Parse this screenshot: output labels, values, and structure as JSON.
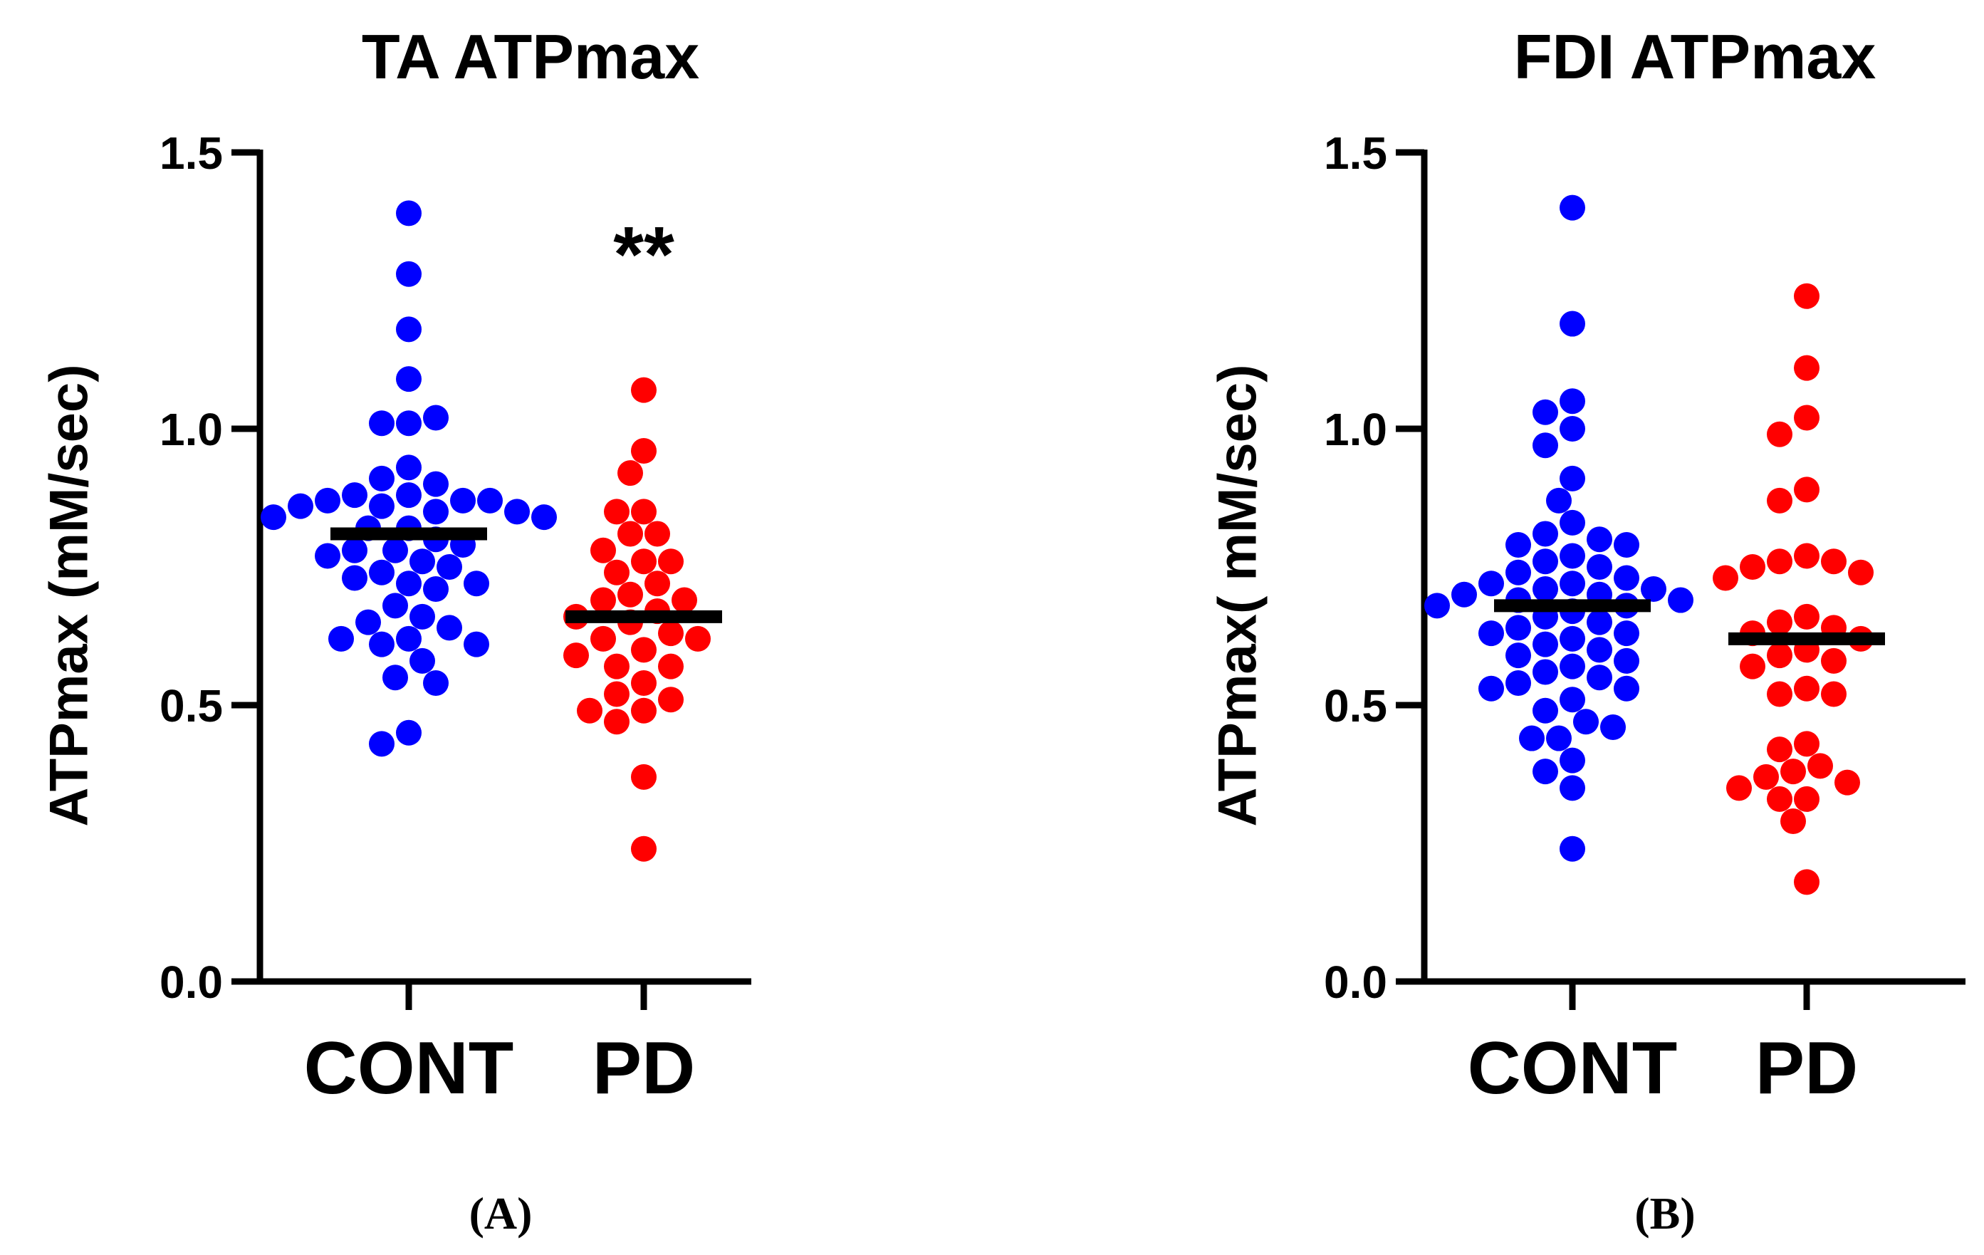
{
  "chart_data": [
    {
      "type": "scatter",
      "title": "TA ATPmax",
      "ylabel": "ATPmax (mM/sec)",
      "ylim": [
        0,
        1.5
      ],
      "yticks": [
        "0.0",
        "0.5",
        "1.0",
        "1.5"
      ],
      "categories": [
        "CONT",
        "PD"
      ],
      "panel_label": "(A)",
      "significance": "**",
      "colors": {
        "CONT": "#0000ff",
        "PD": "#ff0000",
        "mean": "#000000"
      },
      "series": [
        {
          "values": [
            1.39,
            1.28,
            1.18,
            1.09,
            1.01,
            1.01,
            1.02,
            0.93,
            0.91,
            0.9,
            0.88,
            0.88,
            0.87,
            0.87,
            0.87,
            0.86,
            0.86,
            0.85,
            0.85,
            0.84,
            0.84,
            0.82,
            0.82,
            0.8,
            0.79,
            0.78,
            0.78,
            0.77,
            0.76,
            0.75,
            0.74,
            0.73,
            0.72,
            0.72,
            0.71,
            0.68,
            0.66,
            0.65,
            0.64,
            0.62,
            0.62,
            0.61,
            0.61,
            0.58,
            0.55,
            0.54,
            0.45,
            0.43
          ],
          "mean": 0.81
        },
        {
          "values": [
            1.07,
            0.96,
            0.92,
            0.85,
            0.85,
            0.81,
            0.81,
            0.78,
            0.76,
            0.76,
            0.74,
            0.72,
            0.7,
            0.69,
            0.69,
            0.67,
            0.66,
            0.65,
            0.63,
            0.62,
            0.62,
            0.6,
            0.59,
            0.57,
            0.57,
            0.54,
            0.52,
            0.51,
            0.49,
            0.49,
            0.47,
            0.37,
            0.24
          ],
          "mean": 0.66
        }
      ]
    },
    {
      "type": "scatter",
      "title": "FDI ATPmax",
      "ylabel": "ATPmax( mM/sec)",
      "ylim": [
        0,
        1.5
      ],
      "yticks": [
        "0.0",
        "0.5",
        "1.0",
        "1.5"
      ],
      "categories": [
        "CONT",
        "PD"
      ],
      "panel_label": "(B)",
      "colors": {
        "CONT": "#0000ff",
        "PD": "#ff0000",
        "mean": "#000000"
      },
      "series": [
        {
          "values": [
            1.4,
            1.19,
            1.05,
            1.03,
            1.0,
            0.97,
            0.91,
            0.87,
            0.83,
            0.81,
            0.8,
            0.79,
            0.79,
            0.77,
            0.76,
            0.75,
            0.74,
            0.73,
            0.72,
            0.72,
            0.71,
            0.71,
            0.7,
            0.7,
            0.69,
            0.69,
            0.68,
            0.68,
            0.67,
            0.66,
            0.65,
            0.64,
            0.63,
            0.63,
            0.62,
            0.61,
            0.6,
            0.59,
            0.58,
            0.57,
            0.56,
            0.55,
            0.54,
            0.53,
            0.53,
            0.51,
            0.49,
            0.47,
            0.46,
            0.44,
            0.44,
            0.4,
            0.38,
            0.35,
            0.24
          ],
          "mean": 0.68
        },
        {
          "values": [
            1.24,
            1.11,
            1.02,
            0.99,
            0.89,
            0.87,
            0.77,
            0.76,
            0.76,
            0.75,
            0.74,
            0.73,
            0.66,
            0.65,
            0.64,
            0.63,
            0.62,
            0.6,
            0.59,
            0.58,
            0.57,
            0.53,
            0.52,
            0.52,
            0.43,
            0.42,
            0.39,
            0.38,
            0.37,
            0.36,
            0.35,
            0.33,
            0.33,
            0.29,
            0.18
          ],
          "mean": 0.62
        }
      ]
    }
  ]
}
